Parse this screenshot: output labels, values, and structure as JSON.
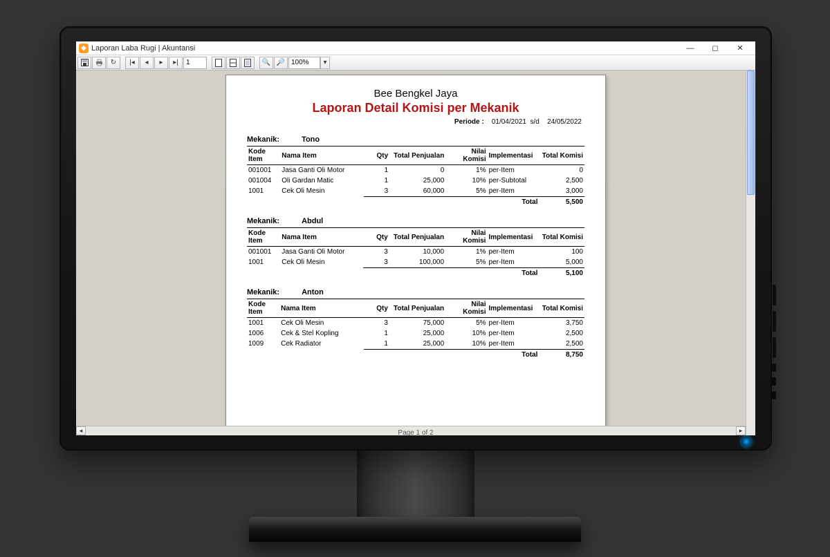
{
  "window": {
    "title": "Laporan Laba Rugi | Akuntansi"
  },
  "toolbar": {
    "page_input": "1",
    "zoom": "100%"
  },
  "status": {
    "text": "Page 1 of 2"
  },
  "report": {
    "company": "Bee Bengkel Jaya",
    "title": "Laporan Detail Komisi per Mekanik",
    "periode_label": "Periode :",
    "periode_from": "01/04/2021",
    "periode_sep": "s/d",
    "periode_to": "24/05/2022",
    "mekanik_label": "Mekanik:",
    "headers": {
      "kode": "Kode Item",
      "nama": "Nama Item",
      "qty": "Qty",
      "total_penjualan": "Total Penjualan",
      "nilai_komisi": "Nilai Komisi",
      "implementasi": "Implementasi",
      "total_komisi": "Total Komisi"
    },
    "total_label": "Total",
    "groups": [
      {
        "name": "Tono",
        "rows": [
          {
            "kode": "001001",
            "nama": "Jasa Ganti Oli Motor",
            "qty": "1",
            "tp": "0",
            "nk": "1%",
            "imp": "per-Item",
            "tk": "0"
          },
          {
            "kode": "001004",
            "nama": "Oli Gardan Matic",
            "qty": "1",
            "tp": "25,000",
            "nk": "10%",
            "imp": "per-Subtotal",
            "tk": "2,500"
          },
          {
            "kode": "1001",
            "nama": "Cek Oli Mesin",
            "qty": "3",
            "tp": "60,000",
            "nk": "5%",
            "imp": "per-Item",
            "tk": "3,000"
          }
        ],
        "total": "5,500"
      },
      {
        "name": "Abdul",
        "rows": [
          {
            "kode": "001001",
            "nama": "Jasa Ganti Oli Motor",
            "qty": "3",
            "tp": "10,000",
            "nk": "1%",
            "imp": "per-Item",
            "tk": "100"
          },
          {
            "kode": "1001",
            "nama": "Cek Oli Mesin",
            "qty": "3",
            "tp": "100,000",
            "nk": "5%",
            "imp": "per-Item",
            "tk": "5,000"
          }
        ],
        "total": "5,100"
      },
      {
        "name": "Anton",
        "rows": [
          {
            "kode": "1001",
            "nama": "Cek Oli Mesin",
            "qty": "3",
            "tp": "75,000",
            "nk": "5%",
            "imp": "per-Item",
            "tk": "3,750"
          },
          {
            "kode": "1006",
            "nama": "Cek & Stel Kopling",
            "qty": "1",
            "tp": "25,000",
            "nk": "10%",
            "imp": "per-Item",
            "tk": "2,500"
          },
          {
            "kode": "1009",
            "nama": "Cek Radiator",
            "qty": "1",
            "tp": "25,000",
            "nk": "10%",
            "imp": "per-Item",
            "tk": "2,500"
          }
        ],
        "total": "8,750"
      }
    ]
  },
  "colors": {
    "title": "#b01010",
    "background": "#343436",
    "workspace": "#d4d0c8"
  }
}
